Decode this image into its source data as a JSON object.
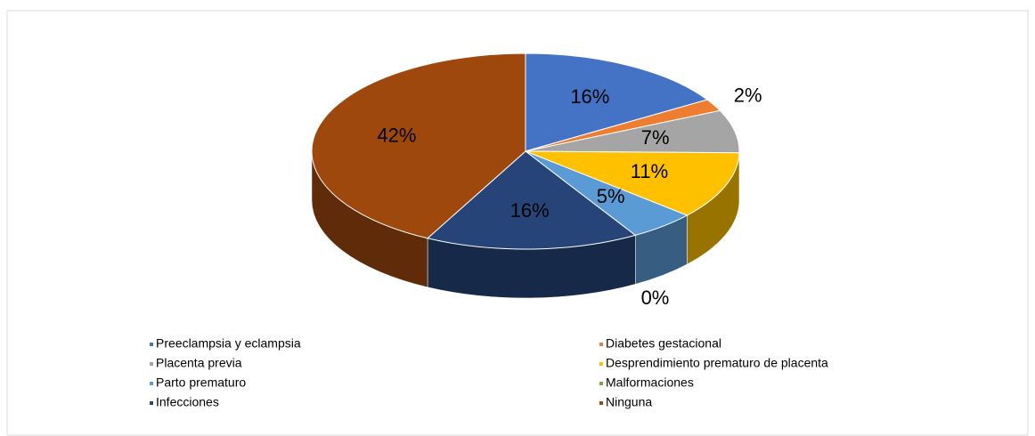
{
  "chart_data": {
    "type": "pie",
    "categories": [
      "Preeclampsia y eclampsia",
      "Diabetes gestacional",
      "Placenta previa",
      "Desprendimiento prematuro de placenta",
      "Parto prematuro",
      "Malformaciones",
      "Infecciones",
      "Ninguna"
    ],
    "values": [
      16,
      2,
      7,
      11,
      5,
      0,
      16,
      42
    ],
    "value_labels": [
      "16%",
      "2%",
      "7%",
      "11%",
      "5%",
      "0%",
      "16%",
      "42%"
    ],
    "colors": [
      "#4472c4",
      "#ed7d31",
      "#a5a5a5",
      "#ffc000",
      "#5b9bd5",
      "#70ad47",
      "#264478",
      "#9e480e"
    ],
    "legend": "bottom"
  }
}
